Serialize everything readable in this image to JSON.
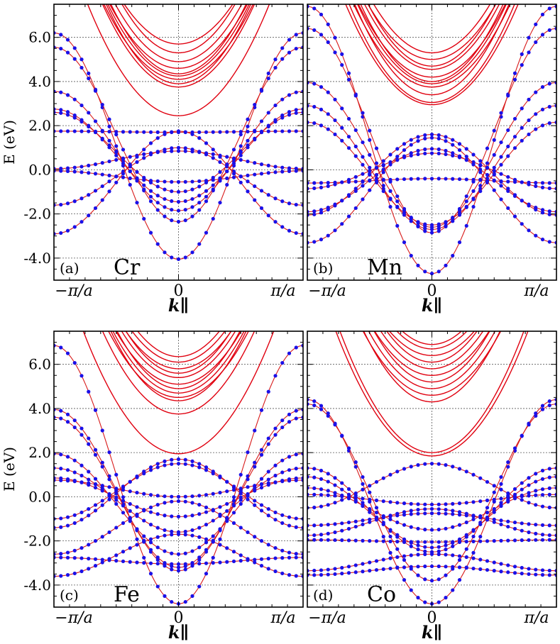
{
  "chart_data": [
    {
      "type": "line",
      "panel_label": "(a)",
      "element": "Cr",
      "ylabel": "E (eV)",
      "xlabel": "k∥",
      "x_tick_labels": [
        "−π/a",
        "0",
        "π/a"
      ],
      "y_tick_labels": [
        "-4.0",
        "-2.0",
        "0.0",
        "2.0",
        "4.0",
        "6.0"
      ],
      "xlim": [
        -1,
        1
      ],
      "ylim": [
        -5.0,
        7.5
      ],
      "grid": true,
      "red_bands_gamma": [
        2.45,
        3.75,
        3.9,
        4.1,
        4.25,
        4.35,
        4.6,
        4.9,
        5.3,
        5.7
      ],
      "dotted_bands": [
        {
          "gamma": -4.05,
          "edge": 6.2
        },
        {
          "gamma": -2.35,
          "edge": 5.55
        },
        {
          "gamma": -1.85,
          "edge": 3.55
        },
        {
          "gamma": -1.45,
          "edge": 2.75
        },
        {
          "gamma": -1.0,
          "edge": 2.6
        },
        {
          "gamma": -0.55,
          "edge": -0.05
        },
        {
          "gamma": 0.85,
          "edge": 0.05
        },
        {
          "gamma": 1.0,
          "edge": -1.6
        },
        {
          "gamma": 1.75,
          "edge": -2.9
        },
        {
          "gamma": 1.7,
          "edge": 1.75
        }
      ]
    },
    {
      "type": "line",
      "panel_label": "(b)",
      "element": "Mn",
      "ylabel": "",
      "xlabel": "k∥",
      "x_tick_labels": [
        "−π/a",
        "0",
        "π/a"
      ],
      "y_tick_labels": [],
      "xlim": [
        -1,
        1
      ],
      "ylim": [
        -5.0,
        7.5
      ],
      "grid": true,
      "red_bands_gamma": [
        2.95,
        3.05,
        3.4,
        3.75,
        3.9,
        4.0,
        4.2,
        4.55,
        4.7,
        5.0,
        5.3
      ],
      "dotted_bands": [
        {
          "gamma": -4.7,
          "edge": 7.4
        },
        {
          "gamma": -2.85,
          "edge": 6.4
        },
        {
          "gamma": -2.6,
          "edge": 3.95
        },
        {
          "gamma": -2.7,
          "edge": 2.9
        },
        {
          "gamma": -2.5,
          "edge": 2.15
        },
        {
          "gamma": -0.4,
          "edge": -0.6
        },
        {
          "gamma": 0.75,
          "edge": -0.85
        },
        {
          "gamma": 0.95,
          "edge": -1.9
        },
        {
          "gamma": 1.6,
          "edge": -2.05
        },
        {
          "gamma": 1.45,
          "edge": -3.3
        }
      ]
    },
    {
      "type": "line",
      "panel_label": "(c)",
      "element": "Fe",
      "ylabel": "E (eV)",
      "xlabel": "k∥",
      "x_tick_labels": [
        "−π/a",
        "0",
        "π/a"
      ],
      "y_tick_labels": [
        "-4.0",
        "-2.0",
        "0.0",
        "2.0",
        "4.0",
        "6.0"
      ],
      "xlim": [
        -1,
        1
      ],
      "ylim": [
        -5.0,
        7.5
      ],
      "grid": true,
      "red_bands_gamma": [
        1.95,
        3.75,
        4.35,
        4.5,
        4.7,
        4.9,
        5.1,
        5.4,
        5.6,
        5.8,
        6.1,
        6.35
      ],
      "dotted_bands": [
        {
          "gamma": -4.85,
          "edge": 6.85
        },
        {
          "gamma": -3.35,
          "edge": 3.95
        },
        {
          "gamma": -3.2,
          "edge": 3.6
        },
        {
          "gamma": -2.6,
          "edge": 1.95
        },
        {
          "gamma": -1.6,
          "edge": 1.3
        },
        {
          "gamma": -0.9,
          "edge": 0.85
        },
        {
          "gamma": 0.0,
          "edge": 0.75
        },
        {
          "gamma": 1.5,
          "edge": -1.0
        },
        {
          "gamma": 1.7,
          "edge": -1.4
        },
        {
          "gamma": -0.2,
          "edge": -2.6
        },
        {
          "gamma": -3.05,
          "edge": -2.75
        },
        {
          "gamma": -1.7,
          "edge": -3.6
        }
      ]
    },
    {
      "type": "line",
      "panel_label": "(d)",
      "element": "Co",
      "ylabel": "",
      "xlabel": "k∥",
      "x_tick_labels": [
        "−π/a",
        "0",
        "π/a"
      ],
      "y_tick_labels": [],
      "xlim": [
        -1,
        1
      ],
      "ylim": [
        -5.0,
        7.5
      ],
      "grid": true,
      "red_bands_gamma": [
        1.85,
        2.0,
        4.3,
        4.6,
        4.9,
        5.2,
        5.5,
        5.8,
        6.1,
        6.4,
        6.7,
        6.9
      ],
      "dotted_bands": [
        {
          "gamma": -4.85,
          "edge": 4.4
        },
        {
          "gamma": -3.8,
          "edge": 4.2
        },
        {
          "gamma": -2.5,
          "edge": 1.3
        },
        {
          "gamma": -2.3,
          "edge": 0.9
        },
        {
          "gamma": -1.5,
          "edge": 0.4
        },
        {
          "gamma": -0.35,
          "edge": 0.1
        },
        {
          "gamma": 1.5,
          "edge": -0.5
        },
        {
          "gamma": -0.75,
          "edge": -1.3
        },
        {
          "gamma": -0.55,
          "edge": -1.75
        },
        {
          "gamma": -2.05,
          "edge": -1.95
        },
        {
          "gamma": -2.6,
          "edge": -3.35
        },
        {
          "gamma": -3.15,
          "edge": -3.55
        }
      ]
    }
  ],
  "colors": {
    "red_band": "#e0000f",
    "dot": "#1a10e8",
    "dot_line": "#d81a1a",
    "grid": "#555555",
    "axis": "#000000"
  }
}
